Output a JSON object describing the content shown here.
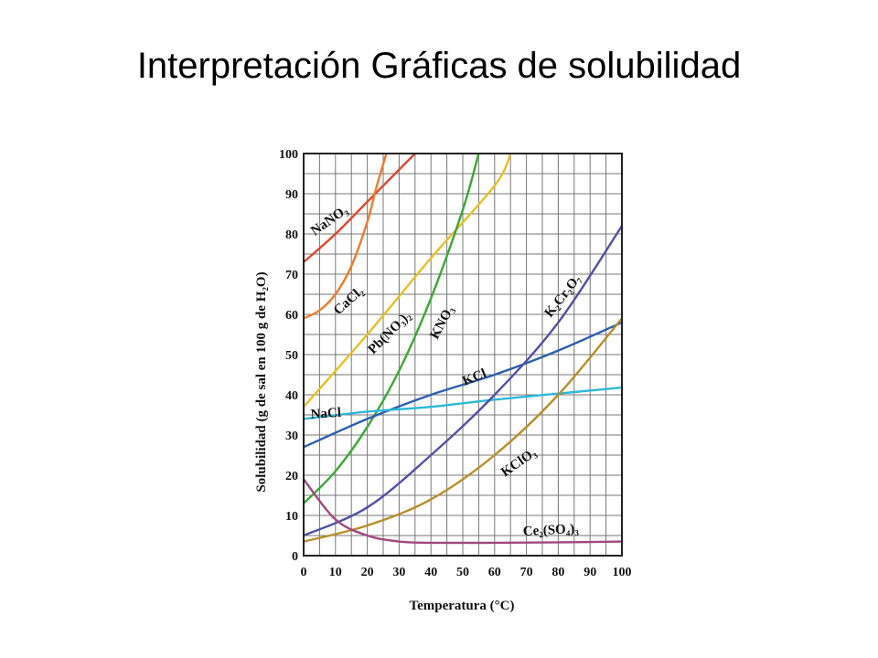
{
  "slide": {
    "title": "Interpretación Gráficas de solubilidad"
  },
  "chart_data": {
    "type": "line",
    "title": "",
    "xlabel": "Temperatura (°C)",
    "ylabel": "Solubilidad (g de sal en 100 g de H₂O)",
    "xlim": [
      0,
      100
    ],
    "ylim": [
      0,
      100
    ],
    "x_ticks": [
      0,
      10,
      20,
      30,
      40,
      50,
      60,
      70,
      80,
      90,
      100
    ],
    "y_ticks": [
      0,
      10,
      20,
      30,
      40,
      50,
      60,
      70,
      80,
      90,
      100
    ],
    "grid": true,
    "legend": "none (labels on curves)",
    "series": [
      {
        "name": "NaNO₃",
        "color": "#e0452c",
        "x": [
          0,
          10,
          20,
          30,
          35
        ],
        "y": [
          73,
          80,
          88,
          96,
          100
        ]
      },
      {
        "name": "CaCl₂",
        "color": "#f07a2a",
        "x": [
          0,
          5,
          10,
          15,
          20,
          23,
          26
        ],
        "y": [
          59,
          61,
          65,
          72,
          83,
          92,
          100
        ]
      },
      {
        "name": "Pb(NO₃)₂",
        "color": "#e8c020",
        "x": [
          0,
          20,
          40,
          60,
          65
        ],
        "y": [
          37,
          55,
          74,
          92,
          100
        ]
      },
      {
        "name": "KNO₃",
        "color": "#3aa832",
        "x": [
          0,
          10,
          20,
          30,
          40,
          50,
          55
        ],
        "y": [
          13,
          21,
          32,
          46,
          64,
          86,
          100
        ]
      },
      {
        "name": "KCl",
        "color": "#2c5fb0",
        "x": [
          0,
          20,
          40,
          60,
          80,
          100
        ],
        "y": [
          27,
          34,
          40,
          45,
          51,
          58
        ]
      },
      {
        "name": "NaCl",
        "color": "#2cb8d8",
        "x": [
          0,
          20,
          40,
          60,
          80,
          100
        ],
        "y": [
          34,
          35.8,
          37,
          38.8,
          40.3,
          41.8
        ]
      },
      {
        "name": "K₂Cr₂O₇",
        "color": "#5050a8",
        "x": [
          0,
          20,
          40,
          60,
          80,
          100
        ],
        "y": [
          5,
          12,
          25,
          40,
          58,
          82
        ]
      },
      {
        "name": "KClO₃",
        "color": "#b89028",
        "x": [
          0,
          20,
          40,
          60,
          80,
          100
        ],
        "y": [
          3.5,
          7.5,
          14,
          25,
          40,
          59
        ]
      },
      {
        "name": "Ce₂(SO₄)₃",
        "color": "#a04880",
        "x": [
          0,
          10,
          20,
          30,
          40,
          60,
          80,
          100
        ],
        "y": [
          19,
          9,
          5,
          3.5,
          3.2,
          3.2,
          3.3,
          3.5
        ]
      }
    ]
  }
}
